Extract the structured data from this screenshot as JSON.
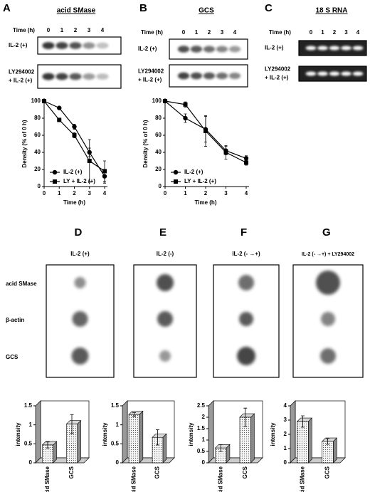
{
  "blots": [
    {
      "letter": "A",
      "title": "acid SMase",
      "time_label": "Time (h)",
      "times": [
        0,
        1,
        2,
        3,
        4
      ],
      "rows": [
        [
          "IL-2 (+)"
        ],
        [
          "LY294002",
          "+ IL-2 (+)"
        ]
      ]
    },
    {
      "letter": "B",
      "title": "GCS",
      "time_label": "Time (h)",
      "times": [
        0,
        1,
        2,
        3,
        4
      ],
      "rows": [
        [
          "IL-2 (+)"
        ],
        [
          "LY294002",
          "+ IL-2 (+)"
        ]
      ]
    },
    {
      "letter": "C",
      "title": "18 S RNA",
      "time_label": "Time (h)",
      "times": [
        0,
        1,
        2,
        3,
        4
      ],
      "rows": [
        [
          "IL-2 (+)"
        ],
        [
          "LY294002",
          "+ IL-2 (+)"
        ]
      ]
    }
  ],
  "dot_blot_rows": [
    "acid SMase",
    "β-actin",
    "GCS"
  ],
  "dot_blots": [
    {
      "letter": "D",
      "title": "IL-2 (+)"
    },
    {
      "letter": "E",
      "title": "IL-2 (-)"
    },
    {
      "letter": "F",
      "title": "IL-2 (- →+)"
    },
    {
      "letter": "G",
      "title": "IL-2 (- →+) + LY294002"
    }
  ],
  "chart_data": [
    {
      "type": "line",
      "xlabel": "Time (h)",
      "ylabel": "Density (% of 0 h)",
      "x": [
        0,
        1,
        2,
        3,
        4
      ],
      "xlim": [
        0,
        4
      ],
      "xticks": [
        0,
        1,
        2,
        3,
        4
      ],
      "ylim": [
        0,
        100
      ],
      "yticks": [
        0,
        20,
        40,
        60,
        80,
        100
      ],
      "legend": "lower left",
      "series": [
        {
          "name": "IL-2 (+)",
          "marker": "circle",
          "color": "#000000",
          "values": [
            100,
            92,
            70,
            40,
            12
          ],
          "errors": [
            0,
            0,
            3,
            5,
            8
          ]
        },
        {
          "name": "LY + IL-2 (+)",
          "marker": "square",
          "color": "#000000",
          "values": [
            100,
            78,
            60,
            30,
            18
          ],
          "errors": [
            0,
            0,
            3,
            25,
            12
          ]
        }
      ]
    },
    {
      "type": "line",
      "xlabel": "Time (h)",
      "ylabel": "Density (% of 0 h)",
      "x": [
        0,
        1,
        2,
        3,
        4
      ],
      "xlim": [
        0,
        4
      ],
      "xticks": [
        0,
        1,
        2,
        3,
        4
      ],
      "ylim": [
        0,
        100
      ],
      "yticks": [
        0,
        20,
        40,
        60,
        80,
        100
      ],
      "legend": "lower left",
      "series": [
        {
          "name": "IL-2 (+)",
          "marker": "circle",
          "color": "#000000",
          "values": [
            100,
            80,
            67,
            42,
            33
          ],
          "errors": [
            0,
            5,
            15,
            5,
            3
          ]
        },
        {
          "name": "LY + IL-2 (+)",
          "marker": "square",
          "color": "#000000",
          "values": [
            100,
            96,
            65,
            40,
            28
          ],
          "errors": [
            0,
            3,
            18,
            8,
            3
          ]
        }
      ]
    },
    {
      "type": "bar",
      "ylabel": "intensity",
      "categories": [
        "acid SMase",
        "GCS"
      ],
      "values": [
        0.47,
        1.02
      ],
      "errors": [
        0.08,
        0.25
      ],
      "ylim": [
        0,
        1.5
      ],
      "yticks": [
        0,
        0.5,
        1,
        1.5
      ],
      "color": "#d8d8d8"
    },
    {
      "type": "bar",
      "ylabel": "intensity",
      "categories": [
        "acid SMase",
        "GCS"
      ],
      "values": [
        1.27,
        0.67
      ],
      "errors": [
        0.05,
        0.2
      ],
      "ylim": [
        0,
        1.5
      ],
      "yticks": [
        0,
        0.5,
        1,
        1.5
      ],
      "color": "#d8d8d8"
    },
    {
      "type": "bar",
      "ylabel": "intensity",
      "categories": [
        "acid SMase",
        "GCS"
      ],
      "values": [
        0.65,
        2.0
      ],
      "errors": [
        0.15,
        0.4
      ],
      "ylim": [
        0,
        2.5
      ],
      "yticks": [
        0,
        0.5,
        1,
        1.5,
        2,
        2.5
      ],
      "color": "#d8d8d8"
    },
    {
      "type": "bar",
      "ylabel": "intensity",
      "categories": [
        "acid SMase",
        "GCS"
      ],
      "values": [
        2.9,
        1.5
      ],
      "errors": [
        0.4,
        0.2
      ],
      "ylim": [
        0,
        4
      ],
      "yticks": [
        0,
        1,
        2,
        3,
        4
      ],
      "color": "#d8d8d8"
    }
  ]
}
